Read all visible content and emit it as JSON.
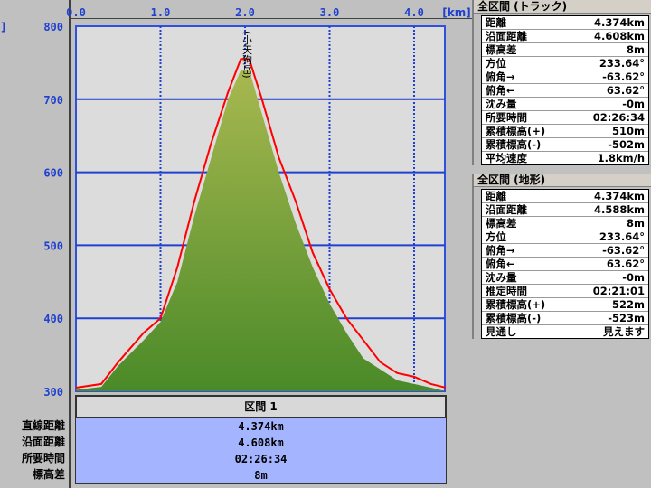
{
  "chart_data": {
    "type": "area",
    "x_ticks": [
      "0.0",
      "1.0",
      "2.0",
      "3.0",
      "4.0"
    ],
    "x_unit": "[km]",
    "y_unit_partial": "]",
    "y_ticks": [
      "800",
      "700",
      "600",
      "500",
      "400",
      "300"
    ],
    "xlim": [
      0,
      4.374
    ],
    "ylim": [
      300,
      800
    ],
    "grid": true,
    "peak_label": "(小天狗岳)",
    "peak_x": 2.0,
    "series": [
      {
        "role": "terrain",
        "color": "#6a9a30",
        "x": [
          0,
          0.3,
          0.5,
          0.8,
          1.0,
          1.2,
          1.4,
          1.6,
          1.8,
          1.95,
          2.05,
          2.2,
          2.4,
          2.6,
          2.8,
          3.0,
          3.2,
          3.4,
          3.6,
          3.8,
          4.0,
          4.2,
          4.374
        ],
        "y": [
          302,
          306,
          335,
          370,
          395,
          450,
          540,
          620,
          700,
          740,
          740,
          680,
          600,
          530,
          470,
          420,
          380,
          345,
          330,
          315,
          310,
          305,
          300
        ]
      },
      {
        "role": "track",
        "color": "#ff0000",
        "x": [
          0,
          0.3,
          0.5,
          0.8,
          1.0,
          1.2,
          1.4,
          1.6,
          1.8,
          1.95,
          2.05,
          2.2,
          2.4,
          2.6,
          2.8,
          3.0,
          3.2,
          3.4,
          3.6,
          3.8,
          4.0,
          4.2,
          4.374
        ],
        "y": [
          305,
          310,
          340,
          380,
          400,
          470,
          560,
          640,
          710,
          755,
          755,
          700,
          620,
          560,
          490,
          440,
          400,
          370,
          340,
          325,
          320,
          310,
          305
        ]
      }
    ]
  },
  "section": {
    "header": "区間 1",
    "labels": [
      "直線距離",
      "沿面距離",
      "所要時間",
      "標高差"
    ],
    "values": [
      "4.374km",
      "4.608km",
      "02:26:34",
      "8m"
    ]
  },
  "track": {
    "title": "全区間 (トラック)",
    "rows": [
      [
        "距離",
        "4.374km"
      ],
      [
        "沿面距離",
        "4.608km"
      ],
      [
        "標高差",
        "8m"
      ],
      [
        "方位",
        "233.64°"
      ],
      [
        "俯角→",
        "-63.62°"
      ],
      [
        "俯角←",
        "63.62°"
      ],
      [
        "沈み量",
        "-0m"
      ],
      [
        "所要時間",
        "02:26:34"
      ],
      [
        "累積標高(+)",
        "510m"
      ],
      [
        "累積標高(-)",
        "-502m"
      ],
      [
        "平均速度",
        "1.8km/h"
      ]
    ]
  },
  "terrain": {
    "title": "全区間 (地形)",
    "rows": [
      [
        "距離",
        "4.374km"
      ],
      [
        "沿面距離",
        "4.588km"
      ],
      [
        "標高差",
        "8m"
      ],
      [
        "方位",
        "233.64°"
      ],
      [
        "俯角→",
        "-63.62°"
      ],
      [
        "俯角←",
        "63.62°"
      ],
      [
        "沈み量",
        "-0m"
      ],
      [
        "推定時間",
        "02:21:01"
      ],
      [
        "累積標高(+)",
        "522m"
      ],
      [
        "累積標高(-)",
        "-523m"
      ],
      [
        "見通し",
        "見えます"
      ]
    ]
  }
}
